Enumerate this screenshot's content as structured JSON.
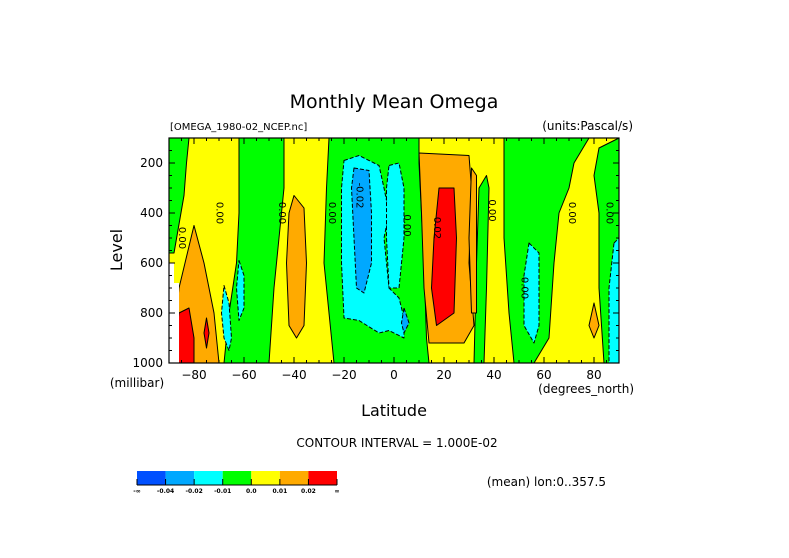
{
  "chart_data": {
    "type": "heatmap",
    "subtype": "filled-contour",
    "title": "Monthly Mean Omega",
    "file_label": "[OMEGA_1980-02_NCEP.nc]",
    "units_label": "(units:Pascal/s)",
    "xlabel": "Latitude",
    "x_units": "(degrees_north)",
    "ylabel": "Level",
    "y_units": "(millibar)",
    "xlim": [
      -90,
      90
    ],
    "ylim": [
      1000,
      100
    ],
    "x_ticks": [
      -80,
      -60,
      -40,
      -20,
      0,
      20,
      40,
      60,
      80
    ],
    "x_tick_labels": [
      "-80",
      "-60",
      "-40",
      "-20",
      "0",
      "20",
      "40",
      "60",
      "80"
    ],
    "y_ticks": [
      200,
      400,
      600,
      800,
      1000
    ],
    "y_tick_labels": [
      "200",
      "400",
      "600",
      "800",
      "1000"
    ],
    "contour_interval_text": "CONTOUR INTERVAL = 1.000E-02",
    "mean_note": "(mean) lon:0..357.5",
    "legend": {
      "colors": [
        "#0050ff",
        "#00a8ff",
        "#00ffff",
        "#00ff00",
        "#ffff00",
        "#ffaa00",
        "#ff0000"
      ],
      "labels": [
        "-∞",
        "-0.04",
        "-0.02",
        "-0.01",
        "0.0",
        "0.01",
        "0.02",
        "∞"
      ]
    },
    "contour_labels": [
      {
        "text": "0.00",
        "lat": -86,
        "lev": 500
      },
      {
        "text": "0.00",
        "lat": -71,
        "lev": 400
      },
      {
        "text": "0.00",
        "lat": -46,
        "lev": 400
      },
      {
        "text": "0.00",
        "lat": -26,
        "lev": 400
      },
      {
        "text": "-0.02",
        "lat": -15,
        "lev": 330
      },
      {
        "text": "0.00",
        "lat": 4,
        "lev": 450
      },
      {
        "text": "0.02",
        "lat": 16,
        "lev": 460
      },
      {
        "text": "0.00",
        "lat": 38,
        "lev": 390
      },
      {
        "text": "0.00",
        "lat": 51,
        "lev": 700
      },
      {
        "text": "0.00",
        "lat": 70,
        "lev": 400
      },
      {
        "text": "0.00",
        "lat": 85,
        "lev": 400
      }
    ],
    "regions": [
      {
        "name": "green-upper-left",
        "color": "#00ff00",
        "poly": [
          [
            -90,
            100
          ],
          [
            -82,
            100
          ],
          [
            -83,
            200
          ],
          [
            -84,
            330
          ],
          [
            -88,
            560
          ],
          [
            -90,
            560
          ]
        ]
      },
      {
        "name": "green-band-south-mid",
        "color": "#00ff00",
        "poly": [
          [
            -62,
            100
          ],
          [
            -44,
            100
          ],
          [
            -44,
            300
          ],
          [
            -46,
            500
          ],
          [
            -48,
            700
          ],
          [
            -50,
            1000
          ],
          [
            -68,
            1000
          ],
          [
            -66,
            800
          ],
          [
            -63,
            600
          ],
          [
            -62,
            400
          ],
          [
            -62,
            200
          ]
        ]
      },
      {
        "name": "green-band-tropics",
        "color": "#00ff00",
        "poly": [
          [
            -26,
            100
          ],
          [
            10,
            100
          ],
          [
            10,
            200
          ],
          [
            12,
            600
          ],
          [
            13,
            900
          ],
          [
            14,
            1000
          ],
          [
            -24,
            1000
          ],
          [
            -26,
            800
          ],
          [
            -28,
            600
          ],
          [
            -27,
            300
          ]
        ]
      },
      {
        "name": "green-band-north-mid",
        "color": "#00ff00",
        "poly": [
          [
            44,
            100
          ],
          [
            78,
            100
          ],
          [
            72,
            200
          ],
          [
            70,
            300
          ],
          [
            66,
            400
          ],
          [
            64,
            600
          ],
          [
            62,
            900
          ],
          [
            56,
            1000
          ],
          [
            48,
            1000
          ],
          [
            46,
            800
          ],
          [
            44,
            500
          ],
          [
            44,
            300
          ]
        ]
      },
      {
        "name": "green-far-north",
        "color": "#00ff00",
        "poly": [
          [
            82,
            140
          ],
          [
            90,
            100
          ],
          [
            90,
            1000
          ],
          [
            84,
            1000
          ],
          [
            82,
            700
          ],
          [
            82,
            400
          ],
          [
            80,
            250
          ]
        ]
      },
      {
        "name": "green-sliver-north",
        "color": "#00ff00",
        "poly": [
          [
            34,
            300
          ],
          [
            37,
            250
          ],
          [
            38,
            300
          ],
          [
            37,
            700
          ],
          [
            36,
            1000
          ],
          [
            32,
            1000
          ],
          [
            33,
            600
          ]
        ]
      },
      {
        "name": "orange-south",
        "color": "#ffaa00",
        "poly": [
          [
            -86,
            700
          ],
          [
            -80,
            450
          ],
          [
            -76,
            600
          ],
          [
            -72,
            800
          ],
          [
            -70,
            1000
          ],
          [
            -86,
            1000
          ],
          [
            -88,
            900
          ]
        ]
      },
      {
        "name": "orange-40s",
        "color": "#ffaa00",
        "poly": [
          [
            -40,
            330
          ],
          [
            -36,
            380
          ],
          [
            -35,
            600
          ],
          [
            -36,
            850
          ],
          [
            -39,
            900
          ],
          [
            -42,
            850
          ],
          [
            -43,
            600
          ],
          [
            -42,
            400
          ]
        ]
      },
      {
        "name": "orange-north-tropics",
        "color": "#ffaa00",
        "poly": [
          [
            10,
            160
          ],
          [
            30,
            170
          ],
          [
            31,
            300
          ],
          [
            30,
            600
          ],
          [
            32,
            850
          ],
          [
            28,
            920
          ],
          [
            14,
            920
          ],
          [
            12,
            700
          ],
          [
            11,
            400
          ]
        ]
      },
      {
        "name": "orange-north-small",
        "color": "#ffaa00",
        "poly": [
          [
            80,
            760
          ],
          [
            82,
            850
          ],
          [
            80,
            900
          ],
          [
            78,
            850
          ]
        ]
      },
      {
        "name": "orange-north-left",
        "color": "#ffaa00",
        "poly": [
          [
            31,
            220
          ],
          [
            33,
            250
          ],
          [
            33,
            800
          ],
          [
            31,
            800
          ],
          [
            30,
            500
          ]
        ]
      },
      {
        "name": "red-south",
        "color": "#ff0000",
        "poly": [
          [
            -86,
            800
          ],
          [
            -82,
            780
          ],
          [
            -80,
            900
          ],
          [
            -80,
            1000
          ],
          [
            -86,
            1000
          ],
          [
            -88,
            950
          ]
        ]
      },
      {
        "name": "red-south-small",
        "color": "#ff0000",
        "poly": [
          [
            -75,
            820
          ],
          [
            -74,
            880
          ],
          [
            -75,
            940
          ],
          [
            -76,
            880
          ]
        ]
      },
      {
        "name": "red-north-tropics",
        "color": "#ff0000",
        "poly": [
          [
            18,
            300
          ],
          [
            24,
            300
          ],
          [
            25,
            500
          ],
          [
            24,
            800
          ],
          [
            17,
            850
          ],
          [
            15,
            700
          ],
          [
            16,
            500
          ]
        ]
      },
      {
        "name": "cyan-south-1",
        "color": "#00ffff",
        "poly": [
          [
            -68,
            690
          ],
          [
            -66,
            760
          ],
          [
            -65,
            900
          ],
          [
            -66,
            950
          ],
          [
            -68,
            900
          ],
          [
            -69,
            800
          ]
        ]
      },
      {
        "name": "cyan-south-2",
        "color": "#00ffff",
        "poly": [
          [
            -62,
            590
          ],
          [
            -60,
            650
          ],
          [
            -60,
            780
          ],
          [
            -62,
            830
          ],
          [
            -63,
            700
          ]
        ]
      },
      {
        "name": "cyan-tropics",
        "color": "#00ffff",
        "poly": [
          [
            -20,
            190
          ],
          [
            -14,
            170
          ],
          [
            -6,
            210
          ],
          [
            -4,
            300
          ],
          [
            -2,
            400
          ],
          [
            -4,
            500
          ],
          [
            -2,
            700
          ],
          [
            2,
            740
          ],
          [
            4,
            820
          ],
          [
            4,
            900
          ],
          [
            -2,
            870
          ],
          [
            -6,
            880
          ],
          [
            -14,
            830
          ],
          [
            -20,
            820
          ],
          [
            -21,
            600
          ],
          [
            -21,
            300
          ]
        ]
      },
      {
        "name": "cyan-tropics-2",
        "color": "#00ffff",
        "poly": [
          [
            -2,
            210
          ],
          [
            2,
            200
          ],
          [
            4,
            300
          ],
          [
            4,
            500
          ],
          [
            2,
            700
          ],
          [
            -2,
            700
          ],
          [
            -3,
            500
          ],
          [
            -3,
            300
          ]
        ]
      },
      {
        "name": "cyan-north-1",
        "color": "#00ffff",
        "poly": [
          [
            54,
            520
          ],
          [
            58,
            560
          ],
          [
            58,
            850
          ],
          [
            56,
            920
          ],
          [
            52,
            850
          ],
          [
            52,
            650
          ]
        ]
      },
      {
        "name": "cyan-north-2",
        "color": "#00ffff",
        "poly": [
          [
            88,
            520
          ],
          [
            90,
            500
          ],
          [
            90,
            1000
          ],
          [
            86,
            1000
          ],
          [
            86,
            700
          ]
        ]
      },
      {
        "name": "blue-tropics",
        "color": "#00a8ff",
        "poly": [
          [
            -16,
            220
          ],
          [
            -10,
            230
          ],
          [
            -9,
            400
          ],
          [
            -9,
            600
          ],
          [
            -12,
            720
          ],
          [
            -15,
            700
          ],
          [
            -16,
            500
          ],
          [
            -17,
            300
          ]
        ]
      },
      {
        "name": "blue-small",
        "color": "#00a8ff",
        "poly": [
          [
            4,
            780
          ],
          [
            6,
            840
          ],
          [
            4,
            880
          ],
          [
            3,
            840
          ]
        ]
      },
      {
        "name": "white-missing-1",
        "color": "#ffffff",
        "poly": [
          [
            -90,
            600
          ],
          [
            -88,
            600
          ],
          [
            -88,
            1000
          ],
          [
            -90,
            1000
          ]
        ]
      },
      {
        "name": "white-missing-2",
        "color": "#ffffff",
        "poly": [
          [
            -88,
            680
          ],
          [
            -86,
            680
          ],
          [
            -86,
            1000
          ],
          [
            -88,
            1000
          ]
        ]
      }
    ]
  }
}
